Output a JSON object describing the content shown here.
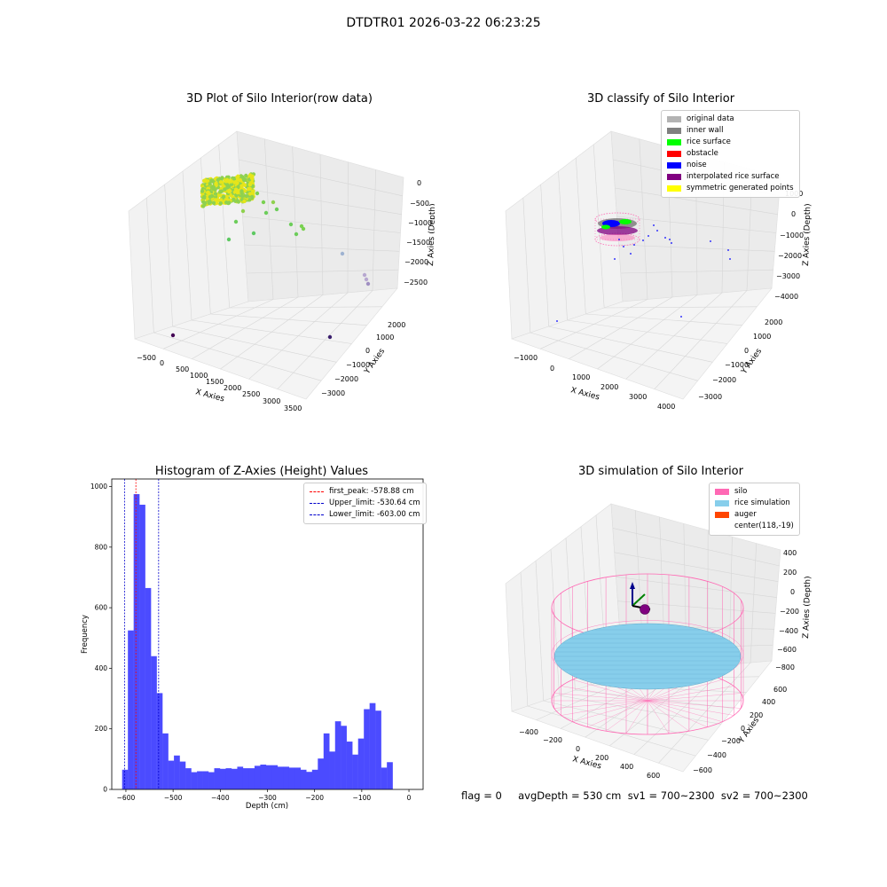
{
  "figure": {
    "title": "DTDTR01 2026-03-22 06:23:25",
    "status_line": "flag = 0     avgDepth = 530 cm  sv1 = 700~2300  sv2 = 700~2300"
  },
  "colors": {
    "silo": "#ff69b4",
    "rice_simulation": "#87ceeb",
    "auger": "#ff4500",
    "histogram_bar": "#4b4bff",
    "first_peak": "#ff0000",
    "limits": "#0000cc"
  },
  "chart_data": [
    {
      "type": "scatter",
      "subtype": "3d",
      "title": "3D Plot of Silo Interior(row data)",
      "xlabel": "X Axies",
      "ylabel": "Y Axies",
      "zlabel": "Z Axies (Depth)",
      "x_ticks": [
        "−500",
        "0",
        "500",
        "1000",
        "1500",
        "2000",
        "2500",
        "3000",
        "3500"
      ],
      "y_ticks": [
        "2000",
        "1000",
        "0",
        "−1000",
        "−2000",
        "−3000"
      ],
      "z_ticks": [
        "0",
        "−500",
        "−1000",
        "−1500",
        "−2000",
        "−2500"
      ],
      "xlim": [
        -700,
        3600
      ],
      "ylim": [
        -3400,
        2600
      ],
      "zlim": [
        -2900,
        200
      ],
      "grid": true
    },
    {
      "type": "scatter",
      "subtype": "3d",
      "title": "3D classify of Silo Interior",
      "xlabel": "X Axies",
      "ylabel": "Y Axies",
      "zlabel": "Z Axies (Depth)",
      "x_ticks": [
        "−1000",
        "0",
        "1000",
        "2000",
        "3000",
        "4000"
      ],
      "y_ticks": [
        "2000",
        "1000",
        "0",
        "−1000",
        "−2000",
        "−3000"
      ],
      "z_ticks": [
        "1000",
        "0",
        "−1000",
        "−2000",
        "−3000",
        "−4000"
      ],
      "legend": [
        {
          "label": "original data",
          "color": "#b3b3b3"
        },
        {
          "label": "inner wall",
          "color": "#808080"
        },
        {
          "label": "rice surface",
          "color": "#00ff00"
        },
        {
          "label": "obstacle",
          "color": "#ff0000"
        },
        {
          "label": "noise",
          "color": "#0000ff"
        },
        {
          "label": "interpolated rice surface",
          "color": "#800080"
        },
        {
          "label": "symmetric generated points",
          "color": "#ffff00"
        }
      ],
      "legend_position": "top-right",
      "grid": true
    },
    {
      "type": "bar",
      "subtype": "histogram",
      "title": "Histogram of Z-Axies (Height) Values",
      "xlabel": "Depth (cm)",
      "ylabel": "Frequency",
      "xlim": [
        -630,
        30
      ],
      "ylim": [
        0,
        1025
      ],
      "x_ticks": [
        -600,
        -500,
        -400,
        -300,
        -200,
        -100,
        0
      ],
      "y_ticks": [
        0,
        200,
        400,
        600,
        800,
        1000
      ],
      "bins": {
        "start": -608,
        "width": 12.2,
        "values": [
          65,
          525,
          975,
          940,
          665,
          440,
          318,
          185,
          95,
          112,
          92,
          70,
          57,
          60,
          60,
          57,
          70,
          68,
          70,
          68,
          75,
          70,
          70,
          78,
          82,
          80,
          80,
          75,
          75,
          72,
          72,
          65,
          58,
          65,
          102,
          185,
          125,
          225,
          210,
          158,
          115,
          168,
          265,
          285,
          260,
          72,
          90
        ]
      },
      "vlines": [
        {
          "label": "first_peak: -578.88 cm",
          "x": -578.88,
          "color": "#ff0000"
        },
        {
          "label": "Upper_limit: -530.64 cm",
          "x": -530.64,
          "color": "#0000cc"
        },
        {
          "label": "Lower_limit: -603.00 cm",
          "x": -603.0,
          "color": "#0000cc"
        }
      ],
      "legend_position": "top-right",
      "grid": false
    },
    {
      "type": "scatter",
      "subtype": "3d",
      "title": "3D simulation of Silo Interior",
      "xlabel": "X Axies",
      "ylabel": "Y Axies",
      "zlabel": "Z Axies (Depth)",
      "x_ticks": [
        "−400",
        "−200",
        "0",
        "200",
        "400",
        "600"
      ],
      "y_ticks": [
        "600",
        "400",
        "200",
        "0",
        "−200",
        "−400",
        "−600"
      ],
      "z_ticks": [
        "400",
        "200",
        "0",
        "−200",
        "−400",
        "−600",
        "−800"
      ],
      "legend": [
        {
          "label": "silo",
          "color": "#ff69b4"
        },
        {
          "label": "rice simulation",
          "color": "#87ceeb"
        },
        {
          "label": "auger",
          "color": "#ff4500"
        },
        {
          "label": "center(118,-19)",
          "color": ""
        }
      ],
      "legend_position": "top-right",
      "grid": true
    }
  ]
}
